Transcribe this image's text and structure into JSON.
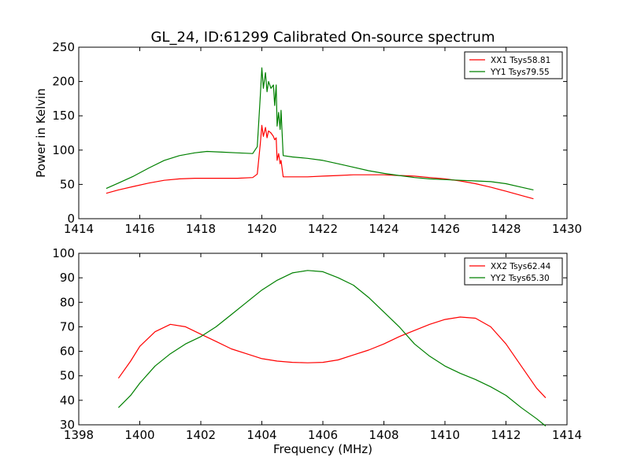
{
  "figure": {
    "title": "GL_24, ID:61299 Calibrated On-source spectrum",
    "xlabel": "Frequency (MHz)"
  },
  "chart_data": [
    {
      "type": "line",
      "ylabel": "Power in Kelvin",
      "xlim": [
        1414,
        1430
      ],
      "ylim": [
        0,
        250
      ],
      "xticks": [
        1414,
        1416,
        1418,
        1420,
        1422,
        1424,
        1426,
        1428,
        1430
      ],
      "yticks": [
        0,
        50,
        100,
        150,
        200,
        250
      ],
      "legend": "top-right",
      "series": [
        {
          "name": "XX1 Tsys58.81",
          "color": "#ff0000",
          "x": [
            1414.9,
            1415.3,
            1415.8,
            1416.3,
            1416.8,
            1417.3,
            1417.8,
            1418.5,
            1419.2,
            1419.7,
            1419.85,
            1419.95,
            1420.0,
            1420.05,
            1420.12,
            1420.17,
            1420.22,
            1420.3,
            1420.38,
            1420.42,
            1420.47,
            1420.5,
            1420.55,
            1420.6,
            1420.63,
            1420.7,
            1421.0,
            1421.5,
            1422.0,
            1422.5,
            1423.0,
            1423.5,
            1424.0,
            1424.5,
            1425.0,
            1425.5,
            1426.0,
            1426.5,
            1427.0,
            1427.5,
            1428.0,
            1428.5,
            1428.9
          ],
          "y": [
            37,
            42,
            47,
            52,
            56,
            58,
            59,
            59,
            59,
            60,
            65,
            110,
            136,
            120,
            133,
            118,
            128,
            125,
            120,
            115,
            118,
            85,
            95,
            80,
            85,
            61,
            61,
            61,
            62,
            63,
            64,
            64,
            64,
            63,
            62,
            60,
            58,
            55,
            51,
            46,
            40,
            34,
            29
          ]
        },
        {
          "name": "YY1 Tsys79.55",
          "color": "#008000",
          "x": [
            1414.9,
            1415.3,
            1415.8,
            1416.3,
            1416.8,
            1417.3,
            1417.8,
            1418.2,
            1418.7,
            1419.2,
            1419.7,
            1419.85,
            1419.95,
            1420.0,
            1420.05,
            1420.12,
            1420.17,
            1420.22,
            1420.3,
            1420.38,
            1420.42,
            1420.47,
            1420.5,
            1420.55,
            1420.6,
            1420.63,
            1420.7,
            1421.0,
            1421.5,
            1422.0,
            1422.5,
            1423.0,
            1423.5,
            1424.0,
            1424.5,
            1425.0,
            1425.5,
            1426.0,
            1426.5,
            1427.0,
            1427.5,
            1428.0,
            1428.5,
            1428.9
          ],
          "y": [
            44,
            52,
            62,
            74,
            85,
            92,
            96,
            98,
            97,
            96,
            95,
            105,
            180,
            220,
            190,
            213,
            185,
            200,
            190,
            195,
            165,
            195,
            135,
            155,
            130,
            158,
            92,
            90,
            88,
            85,
            80,
            75,
            70,
            66,
            63,
            60,
            58,
            57,
            56,
            55,
            54,
            51,
            46,
            42
          ]
        }
      ]
    },
    {
      "type": "line",
      "ylabel": "",
      "xlim": [
        1398,
        1414
      ],
      "ylim": [
        30,
        100
      ],
      "xticks": [
        1398,
        1400,
        1402,
        1404,
        1406,
        1408,
        1410,
        1412,
        1414
      ],
      "yticks": [
        30,
        40,
        50,
        60,
        70,
        80,
        90,
        100
      ],
      "legend": "top-right",
      "series": [
        {
          "name": "XX2 Tsys62.44",
          "color": "#ff0000",
          "x": [
            1399.3,
            1399.7,
            1400.0,
            1400.5,
            1401.0,
            1401.5,
            1402.0,
            1402.5,
            1403.0,
            1403.5,
            1404.0,
            1404.5,
            1405.0,
            1405.5,
            1406.0,
            1406.5,
            1407.0,
            1407.5,
            1408.0,
            1408.5,
            1409.0,
            1409.5,
            1410.0,
            1410.5,
            1411.0,
            1411.5,
            1412.0,
            1412.5,
            1413.0,
            1413.3
          ],
          "y": [
            49,
            56,
            62,
            68,
            71,
            70,
            67,
            64,
            61,
            59,
            57,
            56,
            55.5,
            55.3,
            55.5,
            56.5,
            58.5,
            60.5,
            63,
            66,
            68.5,
            71,
            73,
            74,
            73.5,
            70,
            63,
            54,
            45,
            41
          ]
        },
        {
          "name": "YY2 Tsys65.30",
          "color": "#008000",
          "x": [
            1399.3,
            1399.7,
            1400.0,
            1400.5,
            1401.0,
            1401.5,
            1402.0,
            1402.5,
            1403.0,
            1403.5,
            1404.0,
            1404.5,
            1405.0,
            1405.5,
            1406.0,
            1406.5,
            1407.0,
            1407.5,
            1408.0,
            1408.5,
            1409.0,
            1409.5,
            1410.0,
            1410.5,
            1411.0,
            1411.5,
            1412.0,
            1412.5,
            1413.0,
            1413.3
          ],
          "y": [
            37,
            42,
            47,
            54,
            59,
            63,
            66,
            70,
            75,
            80,
            85,
            89,
            92,
            93,
            92.5,
            90,
            87,
            82,
            76,
            70,
            63,
            58,
            54,
            51,
            48.5,
            45.5,
            42,
            37,
            32.5,
            29.5
          ]
        }
      ]
    }
  ]
}
